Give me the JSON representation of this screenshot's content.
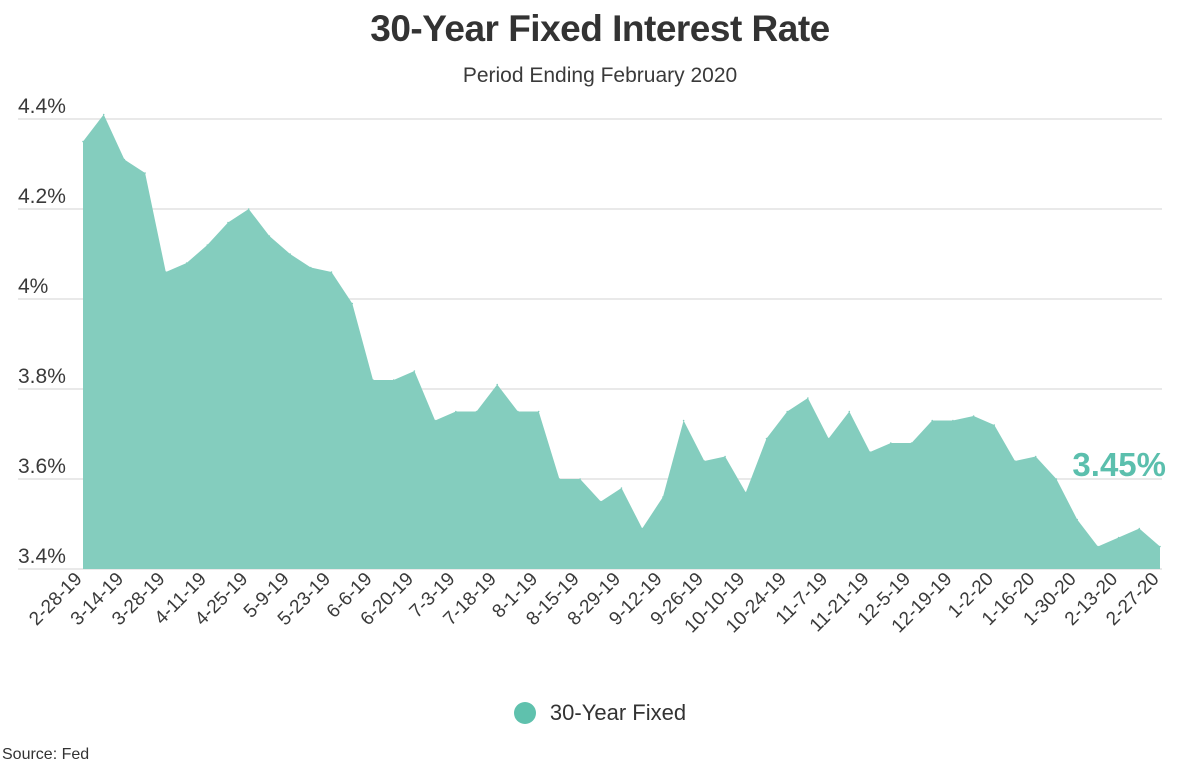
{
  "chart_data": {
    "type": "area",
    "title": "30-Year Fixed Interest Rate",
    "subtitle": "Period Ending February 2020",
    "source": "Source:  Fed",
    "xlabel": "",
    "ylabel": "",
    "ylim": [
      3.4,
      4.4
    ],
    "yticks": [
      "4.4%",
      "4.2%",
      "4%",
      "3.8%",
      "3.6%",
      "3.4%"
    ],
    "ytick_values": [
      4.4,
      4.2,
      4.0,
      3.8,
      3.6,
      3.4
    ],
    "xtick_labels": [
      "2-28-19",
      "3-14-19",
      "3-28-19",
      "4-11-19",
      "4-25-19",
      "5-9-19",
      "5-23-19",
      "6-6-19",
      "6-20-19",
      "7-3-19",
      "7-18-19",
      "8-1-19",
      "8-15-19",
      "8-29-19",
      "9-12-19",
      "9-26-19",
      "10-10-19",
      "10-24-19",
      "11-7-19",
      "11-21-19",
      "12-5-19",
      "12-19-19",
      "1-2-20",
      "1-16-20",
      "1-30-20",
      "2-13-20",
      "2-27-20"
    ],
    "grid": true,
    "legend_position": "bottom-center",
    "series": [
      {
        "name": "30-Year Fixed",
        "color": "#84cdbe",
        "values": [
          4.35,
          4.41,
          4.31,
          4.28,
          4.06,
          4.08,
          4.12,
          4.17,
          4.2,
          4.14,
          4.1,
          4.07,
          4.06,
          3.99,
          3.82,
          3.82,
          3.84,
          3.73,
          3.75,
          3.75,
          3.81,
          3.75,
          3.75,
          3.6,
          3.6,
          3.55,
          3.58,
          3.49,
          3.56,
          3.73,
          3.64,
          3.65,
          3.57,
          3.69,
          3.75,
          3.78,
          3.69,
          3.75,
          3.66,
          3.68,
          3.68,
          3.73,
          3.73,
          3.74,
          3.72,
          3.64,
          3.65,
          3.6,
          3.51,
          3.45,
          3.47,
          3.49,
          3.45
        ]
      }
    ],
    "annotations": [
      {
        "text": "3.45%",
        "color": "#5bbfad"
      }
    ]
  }
}
